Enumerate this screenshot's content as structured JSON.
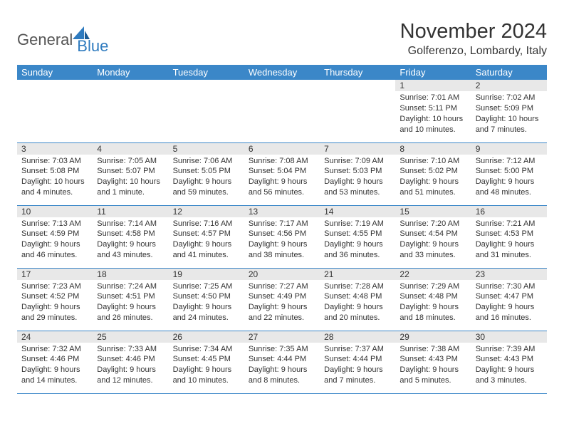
{
  "logo": {
    "text1": "General",
    "text2": "Blue"
  },
  "title": "November 2024",
  "location": "Golferenzo, Lombardy, Italy",
  "colors": {
    "header_bg": "#3b87c8",
    "header_text": "#ffffff",
    "daynum_bg": "#e8e8e8",
    "border": "#3b87c8",
    "logo_gray": "#555555",
    "logo_blue": "#2f7bbf",
    "text": "#333333",
    "background": "#ffffff"
  },
  "weekdays": [
    "Sunday",
    "Monday",
    "Tuesday",
    "Wednesday",
    "Thursday",
    "Friday",
    "Saturday"
  ],
  "weeks": [
    [
      {
        "n": "",
        "sr": "",
        "ss": "",
        "dl": ""
      },
      {
        "n": "",
        "sr": "",
        "ss": "",
        "dl": ""
      },
      {
        "n": "",
        "sr": "",
        "ss": "",
        "dl": ""
      },
      {
        "n": "",
        "sr": "",
        "ss": "",
        "dl": ""
      },
      {
        "n": "",
        "sr": "",
        "ss": "",
        "dl": ""
      },
      {
        "n": "1",
        "sr": "Sunrise: 7:01 AM",
        "ss": "Sunset: 5:11 PM",
        "dl": "Daylight: 10 hours and 10 minutes."
      },
      {
        "n": "2",
        "sr": "Sunrise: 7:02 AM",
        "ss": "Sunset: 5:09 PM",
        "dl": "Daylight: 10 hours and 7 minutes."
      }
    ],
    [
      {
        "n": "3",
        "sr": "Sunrise: 7:03 AM",
        "ss": "Sunset: 5:08 PM",
        "dl": "Daylight: 10 hours and 4 minutes."
      },
      {
        "n": "4",
        "sr": "Sunrise: 7:05 AM",
        "ss": "Sunset: 5:07 PM",
        "dl": "Daylight: 10 hours and 1 minute."
      },
      {
        "n": "5",
        "sr": "Sunrise: 7:06 AM",
        "ss": "Sunset: 5:05 PM",
        "dl": "Daylight: 9 hours and 59 minutes."
      },
      {
        "n": "6",
        "sr": "Sunrise: 7:08 AM",
        "ss": "Sunset: 5:04 PM",
        "dl": "Daylight: 9 hours and 56 minutes."
      },
      {
        "n": "7",
        "sr": "Sunrise: 7:09 AM",
        "ss": "Sunset: 5:03 PM",
        "dl": "Daylight: 9 hours and 53 minutes."
      },
      {
        "n": "8",
        "sr": "Sunrise: 7:10 AM",
        "ss": "Sunset: 5:02 PM",
        "dl": "Daylight: 9 hours and 51 minutes."
      },
      {
        "n": "9",
        "sr": "Sunrise: 7:12 AM",
        "ss": "Sunset: 5:00 PM",
        "dl": "Daylight: 9 hours and 48 minutes."
      }
    ],
    [
      {
        "n": "10",
        "sr": "Sunrise: 7:13 AM",
        "ss": "Sunset: 4:59 PM",
        "dl": "Daylight: 9 hours and 46 minutes."
      },
      {
        "n": "11",
        "sr": "Sunrise: 7:14 AM",
        "ss": "Sunset: 4:58 PM",
        "dl": "Daylight: 9 hours and 43 minutes."
      },
      {
        "n": "12",
        "sr": "Sunrise: 7:16 AM",
        "ss": "Sunset: 4:57 PM",
        "dl": "Daylight: 9 hours and 41 minutes."
      },
      {
        "n": "13",
        "sr": "Sunrise: 7:17 AM",
        "ss": "Sunset: 4:56 PM",
        "dl": "Daylight: 9 hours and 38 minutes."
      },
      {
        "n": "14",
        "sr": "Sunrise: 7:19 AM",
        "ss": "Sunset: 4:55 PM",
        "dl": "Daylight: 9 hours and 36 minutes."
      },
      {
        "n": "15",
        "sr": "Sunrise: 7:20 AM",
        "ss": "Sunset: 4:54 PM",
        "dl": "Daylight: 9 hours and 33 minutes."
      },
      {
        "n": "16",
        "sr": "Sunrise: 7:21 AM",
        "ss": "Sunset: 4:53 PM",
        "dl": "Daylight: 9 hours and 31 minutes."
      }
    ],
    [
      {
        "n": "17",
        "sr": "Sunrise: 7:23 AM",
        "ss": "Sunset: 4:52 PM",
        "dl": "Daylight: 9 hours and 29 minutes."
      },
      {
        "n": "18",
        "sr": "Sunrise: 7:24 AM",
        "ss": "Sunset: 4:51 PM",
        "dl": "Daylight: 9 hours and 26 minutes."
      },
      {
        "n": "19",
        "sr": "Sunrise: 7:25 AM",
        "ss": "Sunset: 4:50 PM",
        "dl": "Daylight: 9 hours and 24 minutes."
      },
      {
        "n": "20",
        "sr": "Sunrise: 7:27 AM",
        "ss": "Sunset: 4:49 PM",
        "dl": "Daylight: 9 hours and 22 minutes."
      },
      {
        "n": "21",
        "sr": "Sunrise: 7:28 AM",
        "ss": "Sunset: 4:48 PM",
        "dl": "Daylight: 9 hours and 20 minutes."
      },
      {
        "n": "22",
        "sr": "Sunrise: 7:29 AM",
        "ss": "Sunset: 4:48 PM",
        "dl": "Daylight: 9 hours and 18 minutes."
      },
      {
        "n": "23",
        "sr": "Sunrise: 7:30 AM",
        "ss": "Sunset: 4:47 PM",
        "dl": "Daylight: 9 hours and 16 minutes."
      }
    ],
    [
      {
        "n": "24",
        "sr": "Sunrise: 7:32 AM",
        "ss": "Sunset: 4:46 PM",
        "dl": "Daylight: 9 hours and 14 minutes."
      },
      {
        "n": "25",
        "sr": "Sunrise: 7:33 AM",
        "ss": "Sunset: 4:46 PM",
        "dl": "Daylight: 9 hours and 12 minutes."
      },
      {
        "n": "26",
        "sr": "Sunrise: 7:34 AM",
        "ss": "Sunset: 4:45 PM",
        "dl": "Daylight: 9 hours and 10 minutes."
      },
      {
        "n": "27",
        "sr": "Sunrise: 7:35 AM",
        "ss": "Sunset: 4:44 PM",
        "dl": "Daylight: 9 hours and 8 minutes."
      },
      {
        "n": "28",
        "sr": "Sunrise: 7:37 AM",
        "ss": "Sunset: 4:44 PM",
        "dl": "Daylight: 9 hours and 7 minutes."
      },
      {
        "n": "29",
        "sr": "Sunrise: 7:38 AM",
        "ss": "Sunset: 4:43 PM",
        "dl": "Daylight: 9 hours and 5 minutes."
      },
      {
        "n": "30",
        "sr": "Sunrise: 7:39 AM",
        "ss": "Sunset: 4:43 PM",
        "dl": "Daylight: 9 hours and 3 minutes."
      }
    ]
  ]
}
